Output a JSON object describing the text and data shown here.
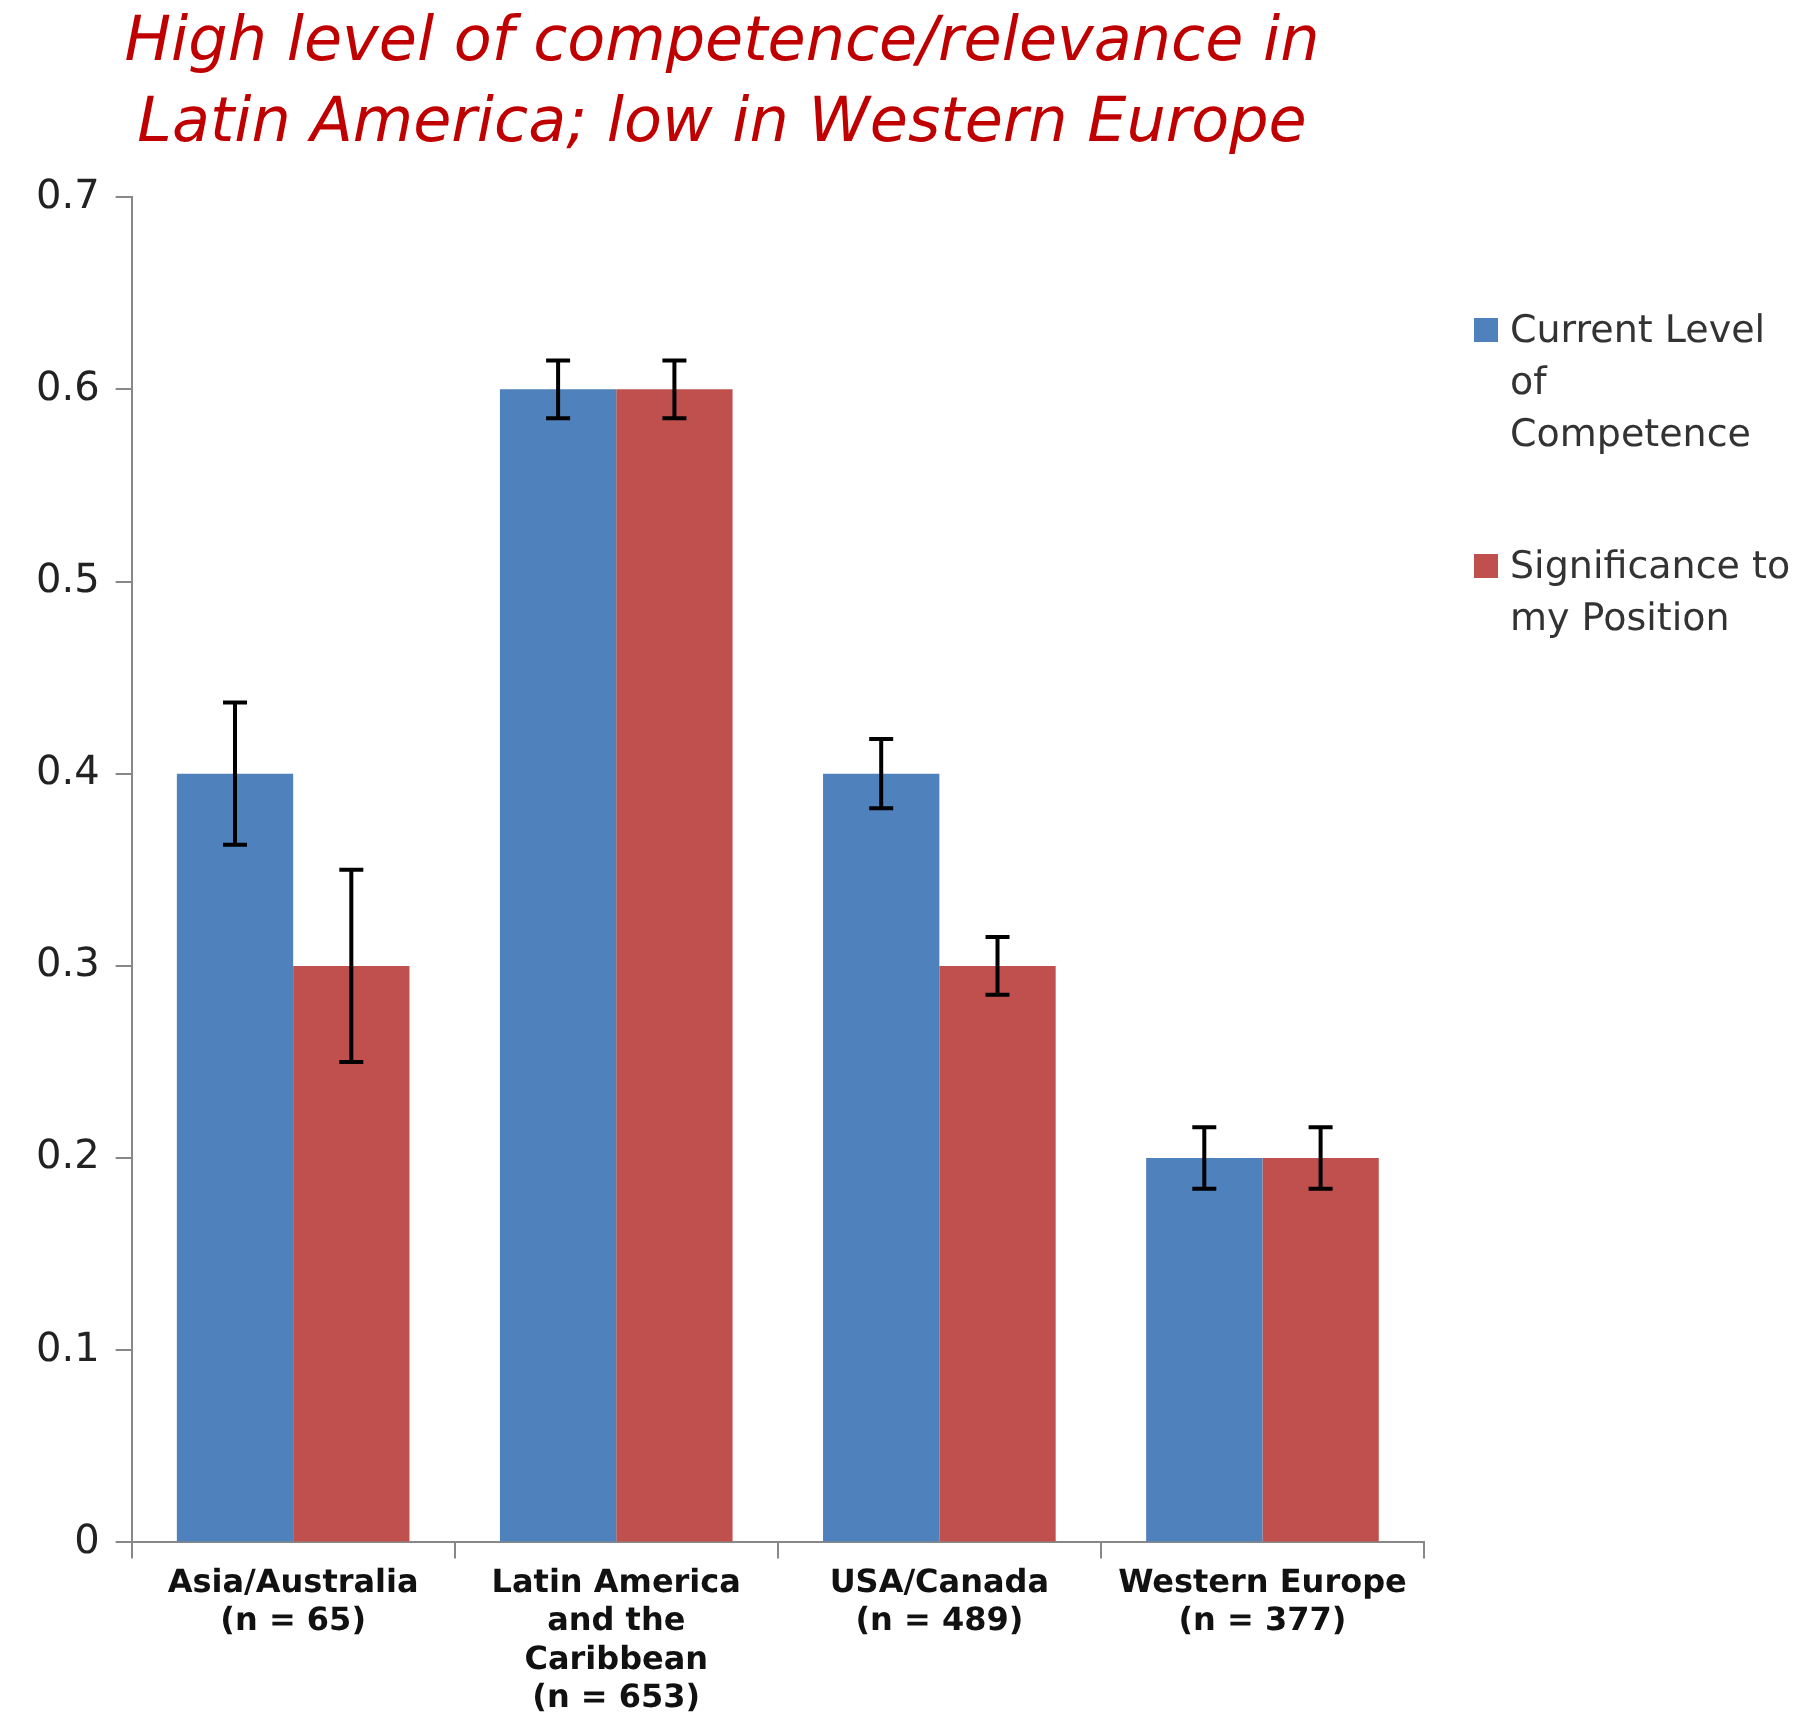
{
  "chart_data": {
    "type": "bar",
    "title": "High level of competence/relevance in Latin America; low in Western Europe",
    "categories": [
      "Asia/Australia (n = 65)",
      "Latin America and the Caribbean (n = 653)",
      "USA/Canada (n = 489)",
      "Western Europe (n = 377)"
    ],
    "series": [
      {
        "name": "Current Level of Competence",
        "color": "#4f81bd",
        "values": [
          0.4,
          0.6,
          0.4,
          0.2
        ],
        "errors": [
          0.037,
          0.015,
          0.018,
          0.016
        ]
      },
      {
        "name": "Significance to my Position",
        "color": "#c0504d",
        "values": [
          0.3,
          0.6,
          0.3,
          0.2
        ],
        "errors": [
          0.05,
          0.015,
          0.015,
          0.016
        ]
      }
    ],
    "ylim": [
      0,
      0.7
    ],
    "yticks": [
      0,
      0.1,
      0.2,
      0.3,
      0.4,
      0.5,
      0.6,
      0.7
    ],
    "grid": false,
    "legend": "right"
  }
}
